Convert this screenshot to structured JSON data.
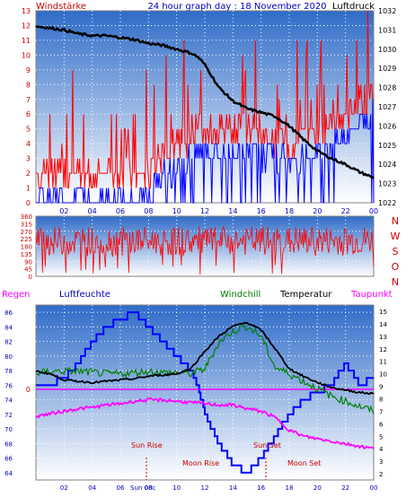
{
  "header": {
    "left_label": "Windstärke",
    "title": "24 hour graph day : 18 November 2020",
    "right_label": "Luftdruck"
  },
  "colors": {
    "wind": "#ff0000",
    "gust": "#0000ff",
    "pressure": "#000000",
    "humidity": "#ff00ff",
    "dewpoint": "#ff00ff",
    "windchill": "#008000",
    "temperature": "#000000",
    "solar": "#0000ff",
    "event_text": "#cc0000",
    "axis_blue": "#0000c0",
    "axis_red": "#cc0000",
    "sky_top": "#2f6cc8",
    "sky_bottom": "#ffffff"
  },
  "legend2": {
    "rain": "Regen",
    "humidity": "Luftfeuchte",
    "windchill": "Windchill",
    "temperature": "Temperatur",
    "dewpoint": "Taupunkt"
  },
  "events": {
    "sunrise": "Sun Rise",
    "moonrise": "Moon Rise",
    "sunset": "Sun Set",
    "moonset": "Moon Set",
    "time_tag": "Sun 08c"
  },
  "directions": [
    "N",
    "W",
    "S",
    "O",
    "N"
  ],
  "chart_data": [
    {
      "type": "line",
      "name": "wind-pressure",
      "xlabel": "",
      "ylabel_left": "Windstärke",
      "ylabel_right": "Luftdruck",
      "x_ticks": [
        "02",
        "04",
        "06",
        "08",
        "10",
        "12",
        "14",
        "16",
        "18",
        "20",
        "22",
        "00"
      ],
      "xlim": [
        0,
        24
      ],
      "y_left_ticks": [
        0,
        1,
        2,
        3,
        4,
        5,
        6,
        7,
        8,
        9,
        10,
        11,
        12,
        13
      ],
      "y_left_lim": [
        0,
        13
      ],
      "y_right_ticks": [
        1022,
        1023,
        1024,
        1025,
        1026,
        1027,
        1028,
        1029,
        1030,
        1031,
        1032
      ],
      "y_right_lim": [
        1022,
        1032
      ],
      "pressure": {
        "x": [
          0,
          1,
          2,
          3,
          4,
          5,
          6,
          7,
          8,
          9,
          10,
          11,
          11.5,
          12,
          13,
          14,
          15,
          16,
          17,
          18,
          19,
          20,
          21,
          22,
          23,
          24
        ],
        "y": [
          1031.2,
          1031.1,
          1031.0,
          1030.8,
          1030.7,
          1030.7,
          1030.6,
          1030.5,
          1030.3,
          1030.2,
          1030.0,
          1029.8,
          1029.6,
          1029.2,
          1028.0,
          1027.3,
          1026.9,
          1026.7,
          1026.5,
          1026.0,
          1025.3,
          1024.7,
          1024.3,
          1024.0,
          1023.6,
          1023.3
        ]
      },
      "wind_range": {
        "x": [
          0,
          8,
          8.5,
          10,
          11.5,
          12,
          16,
          18,
          20,
          22,
          24
        ],
        "y": [
          1.5,
          1.5,
          2.5,
          3.5,
          4.5,
          4.5,
          4.5,
          3.5,
          4.5,
          5.5,
          7.5
        ]
      }
    },
    {
      "type": "scatter",
      "name": "wind-direction",
      "xlim": [
        0,
        24
      ],
      "y_ticks": [
        0,
        45,
        90,
        135,
        180,
        225,
        270,
        315,
        360
      ],
      "ylim": [
        0,
        360
      ],
      "direction_range": [
        120,
        300
      ]
    },
    {
      "type": "line",
      "name": "temperature-humidity",
      "x_ticks": [
        "02",
        "04",
        "06",
        "08",
        "10",
        "12",
        "14",
        "16",
        "18",
        "20",
        "22",
        "00"
      ],
      "xlim": [
        0,
        24
      ],
      "y_left_ticks": [
        64,
        66,
        68,
        70,
        72,
        74,
        76,
        78,
        80,
        82,
        84,
        86
      ],
      "y_left_lim": [
        63,
        87
      ],
      "y_right_ticks": [
        2,
        3,
        4,
        5,
        6,
        7,
        8,
        9,
        10,
        11,
        12,
        13,
        14,
        15
      ],
      "y_right_lim": [
        1.5,
        15.5
      ],
      "rain_marker": "0",
      "series": [
        {
          "name": "Temperatur",
          "x": [
            0,
            1,
            2,
            3,
            4,
            5,
            6,
            7,
            8,
            9,
            10,
            11,
            12,
            13,
            14,
            15,
            16,
            17,
            18,
            19,
            20,
            21,
            22,
            23,
            24
          ],
          "values": [
            10.2,
            10.0,
            9.5,
            9.4,
            9.3,
            9.4,
            9.5,
            9.6,
            9.8,
            9.9,
            10.0,
            10.4,
            11.8,
            13.0,
            13.8,
            14.1,
            13.5,
            12.0,
            10.4,
            9.8,
            9.3,
            8.9,
            8.7,
            8.5,
            8.4
          ]
        },
        {
          "name": "Windchill",
          "x": [
            0,
            1,
            2,
            3,
            4,
            5,
            6,
            7,
            8,
            9,
            10,
            11,
            12,
            13,
            14,
            15,
            16,
            17,
            18,
            19,
            20,
            21,
            22,
            23,
            24
          ],
          "values": [
            10.0,
            10.2,
            10.2,
            10.2,
            10.1,
            10.0,
            10.0,
            10.1,
            10.2,
            10.1,
            10.1,
            10.0,
            10.4,
            12.5,
            13.4,
            13.8,
            13.0,
            10.5,
            10.0,
            9.4,
            8.8,
            8.2,
            7.8,
            7.4,
            7.0
          ]
        },
        {
          "name": "Taupunkt",
          "x": [
            0,
            1,
            2,
            3,
            4,
            5,
            6,
            7,
            8,
            9,
            10,
            11,
            12,
            13,
            14,
            15,
            16,
            17,
            18,
            19,
            20,
            21,
            22,
            23,
            24
          ],
          "values": [
            6.6,
            6.8,
            7.0,
            7.2,
            7.3,
            7.5,
            7.6,
            7.8,
            7.9,
            7.9,
            7.8,
            7.7,
            7.6,
            7.5,
            7.5,
            7.2,
            7.0,
            6.5,
            5.5,
            5.0,
            4.8,
            4.6,
            4.4,
            4.2,
            4.0
          ]
        },
        {
          "name": "Luftfeuchte",
          "x": [
            0,
            1,
            2,
            3,
            4,
            5,
            6,
            7,
            8,
            9,
            10,
            11,
            11.5,
            12,
            13,
            14,
            15,
            16,
            17,
            18,
            19,
            20,
            21,
            22,
            23,
            24
          ],
          "values": [
            76,
            76,
            77,
            79,
            82,
            84,
            85,
            86,
            84,
            82,
            80,
            78,
            76,
            72,
            68,
            65,
            64,
            66,
            69,
            72,
            74,
            75,
            76,
            79,
            76,
            77
          ]
        }
      ]
    }
  ]
}
